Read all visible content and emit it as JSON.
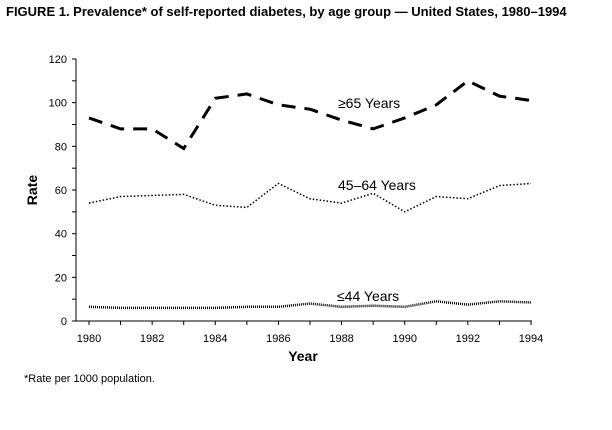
{
  "chart_data": {
    "type": "line",
    "title": "FIGURE 1. Prevalence* of self-reported diabetes, by age group — United States, 1980–1994",
    "xlabel": "Year",
    "ylabel": "Rate",
    "footnote": "*Rate per 1000 population.",
    "x": [
      1980,
      1981,
      1982,
      1983,
      1984,
      1985,
      1986,
      1987,
      1988,
      1989,
      1990,
      1991,
      1992,
      1993,
      1994
    ],
    "xticks": [
      "1980",
      "1982",
      "1984",
      "1986",
      "1988",
      "1990",
      "1992",
      "1994"
    ],
    "yticks": [
      "0",
      "20",
      "40",
      "60",
      "80",
      "100",
      "120"
    ],
    "ylim": [
      0,
      120
    ],
    "xlim": [
      1980,
      1994
    ],
    "grid": false,
    "series": [
      {
        "name": "≥65 Years",
        "style": "dashed",
        "values": [
          93,
          88,
          88,
          79,
          102,
          104,
          99,
          97,
          92,
          88,
          93,
          99,
          110,
          103,
          101
        ]
      },
      {
        "name": "45–64 Years",
        "style": "dotted",
        "values": [
          54,
          57,
          57.5,
          58,
          53,
          52,
          63,
          56,
          54,
          58.5,
          50,
          57,
          56,
          62,
          63
        ]
      },
      {
        "name": "≤44 Years",
        "style": "solid-thin",
        "values": [
          6.5,
          6,
          6,
          6,
          6,
          6.5,
          6.5,
          8,
          6.5,
          7,
          6.5,
          9,
          7.5,
          9,
          8.5
        ]
      }
    ]
  }
}
